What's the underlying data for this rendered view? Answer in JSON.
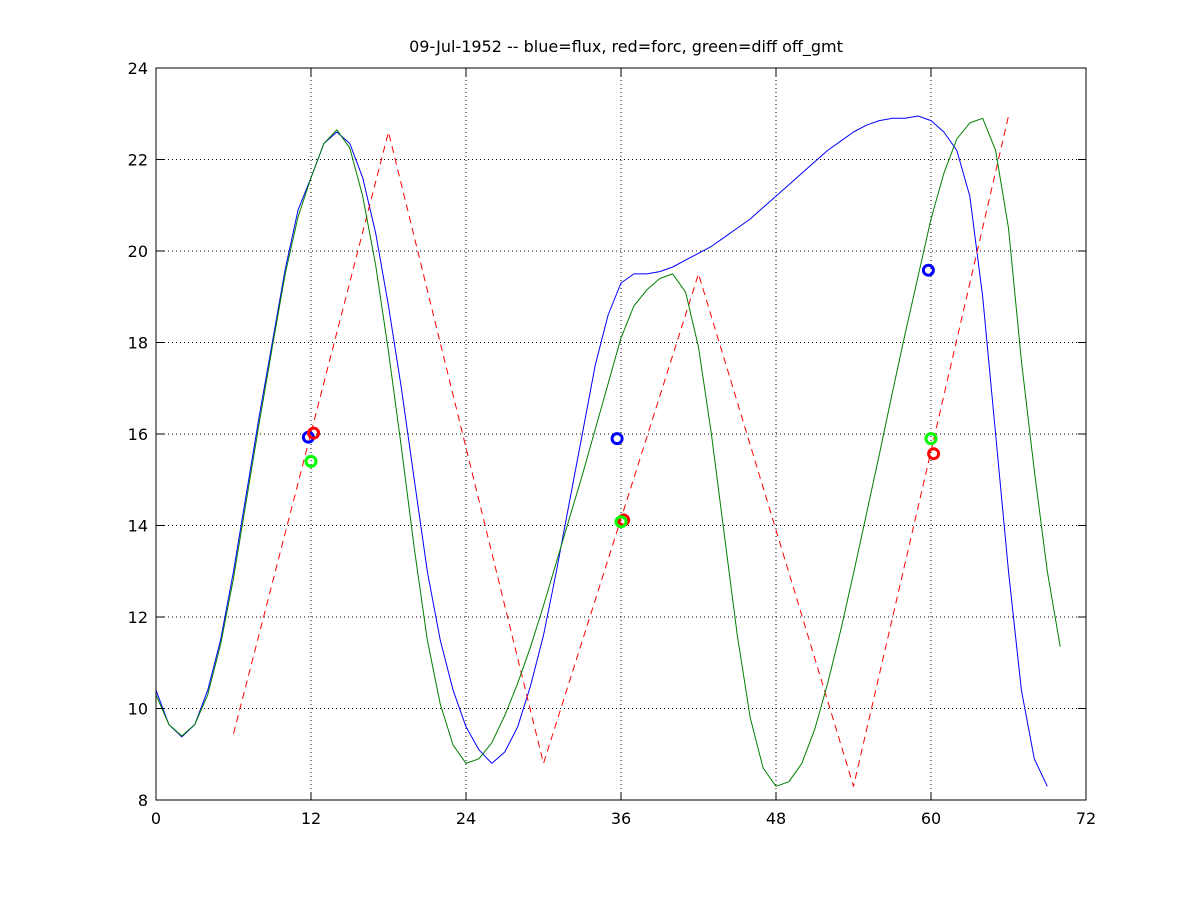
{
  "chart_data": {
    "type": "line",
    "title": "09-Jul-1952 -- blue=flux, red=forc, green=diff off_gmt",
    "xlabel": "",
    "ylabel": "",
    "xlim": [
      0,
      72
    ],
    "ylim": [
      8,
      24
    ],
    "grid": true,
    "xticks": [
      0,
      12,
      24,
      36,
      48,
      60,
      72
    ],
    "xtick_labels": [
      "0",
      "12",
      "24",
      "36",
      "48",
      "60",
      "72"
    ],
    "yticks": [
      8,
      10,
      12,
      14,
      16,
      18,
      20,
      22,
      24
    ],
    "ytick_labels": [
      "8",
      "10",
      "12",
      "14",
      "16",
      "18",
      "20",
      "22",
      "24"
    ],
    "series": [
      {
        "name": "flux",
        "color": "#0000ff",
        "style": "solid",
        "points": [
          [
            0,
            10.4
          ],
          [
            1,
            9.65
          ],
          [
            2,
            9.38
          ],
          [
            3,
            9.65
          ],
          [
            4,
            10.4
          ],
          [
            5,
            11.5
          ],
          [
            6,
            13.0
          ],
          [
            7,
            14.7
          ],
          [
            8,
            16.4
          ],
          [
            9,
            18.0
          ],
          [
            10,
            19.6
          ],
          [
            11,
            20.9
          ],
          [
            12,
            21.6
          ],
          [
            13,
            22.35
          ],
          [
            14,
            22.6
          ],
          [
            15,
            22.35
          ],
          [
            16,
            21.6
          ],
          [
            17,
            20.4
          ],
          [
            18,
            18.8
          ],
          [
            19,
            17.0
          ],
          [
            20,
            15.0
          ],
          [
            21,
            13.0
          ],
          [
            22,
            11.5
          ],
          [
            23,
            10.4
          ],
          [
            24,
            9.6
          ],
          [
            25,
            9.1
          ],
          [
            26,
            8.8
          ],
          [
            27,
            9.05
          ],
          [
            28,
            9.6
          ],
          [
            29,
            10.5
          ],
          [
            30,
            11.6
          ],
          [
            31,
            13.0
          ],
          [
            32,
            14.5
          ],
          [
            33,
            16.0
          ],
          [
            34,
            17.5
          ],
          [
            35,
            18.6
          ],
          [
            36,
            19.3
          ],
          [
            37,
            19.5
          ],
          [
            38,
            19.5
          ],
          [
            39,
            19.55
          ],
          [
            40,
            19.65
          ],
          [
            41,
            19.8
          ],
          [
            42,
            19.95
          ],
          [
            43,
            20.1
          ],
          [
            44,
            20.3
          ],
          [
            45,
            20.5
          ],
          [
            46,
            20.7
          ],
          [
            47,
            20.95
          ],
          [
            48,
            21.2
          ],
          [
            49,
            21.45
          ],
          [
            50,
            21.7
          ],
          [
            51,
            21.95
          ],
          [
            52,
            22.2
          ],
          [
            53,
            22.4
          ],
          [
            54,
            22.6
          ],
          [
            55,
            22.75
          ],
          [
            56,
            22.85
          ],
          [
            57,
            22.9
          ],
          [
            58,
            22.9
          ],
          [
            59,
            22.95
          ],
          [
            60,
            22.85
          ],
          [
            61,
            22.6
          ],
          [
            62,
            22.2
          ],
          [
            63,
            21.2
          ],
          [
            64,
            19.0
          ],
          [
            65,
            16.0
          ],
          [
            66,
            13.0
          ],
          [
            67,
            10.4
          ],
          [
            68,
            8.9
          ],
          [
            69,
            8.3
          ]
        ]
      },
      {
        "name": "forc",
        "color": "#ff0000",
        "style": "dashed",
        "points": [
          [
            6,
            9.45
          ],
          [
            18,
            22.6
          ],
          [
            30,
            8.8
          ],
          [
            42,
            19.5
          ],
          [
            54,
            8.3
          ],
          [
            66,
            22.95
          ]
        ]
      },
      {
        "name": "diff",
        "color": "#008000",
        "style": "solid",
        "points": [
          [
            0,
            10.3
          ],
          [
            1,
            9.65
          ],
          [
            2,
            9.4
          ],
          [
            3,
            9.65
          ],
          [
            4,
            10.3
          ],
          [
            5,
            11.4
          ],
          [
            6,
            12.85
          ],
          [
            7,
            14.55
          ],
          [
            8,
            16.25
          ],
          [
            9,
            17.9
          ],
          [
            10,
            19.5
          ],
          [
            11,
            20.75
          ],
          [
            12,
            21.6
          ],
          [
            13,
            22.35
          ],
          [
            14,
            22.65
          ],
          [
            15,
            22.25
          ],
          [
            16,
            21.2
          ],
          [
            17,
            19.7
          ],
          [
            18,
            17.8
          ],
          [
            19,
            15.7
          ],
          [
            20,
            13.5
          ],
          [
            21,
            11.5
          ],
          [
            22,
            10.1
          ],
          [
            23,
            9.2
          ],
          [
            24,
            8.8
          ],
          [
            25,
            8.9
          ],
          [
            26,
            9.25
          ],
          [
            27,
            9.85
          ],
          [
            28,
            10.55
          ],
          [
            29,
            11.35
          ],
          [
            30,
            12.25
          ],
          [
            31,
            13.2
          ],
          [
            32,
            14.15
          ],
          [
            33,
            15.1
          ],
          [
            34,
            16.1
          ],
          [
            35,
            17.1
          ],
          [
            36,
            18.1
          ],
          [
            37,
            18.8
          ],
          [
            38,
            19.15
          ],
          [
            39,
            19.4
          ],
          [
            40,
            19.5
          ],
          [
            41,
            19.1
          ],
          [
            42,
            17.9
          ],
          [
            43,
            16.0
          ],
          [
            44,
            13.8
          ],
          [
            45,
            11.6
          ],
          [
            46,
            9.8
          ],
          [
            47,
            8.7
          ],
          [
            48,
            8.3
          ],
          [
            49,
            8.4
          ],
          [
            50,
            8.8
          ],
          [
            51,
            9.55
          ],
          [
            52,
            10.55
          ],
          [
            53,
            11.7
          ],
          [
            54,
            12.95
          ],
          [
            55,
            14.25
          ],
          [
            56,
            15.55
          ],
          [
            57,
            16.9
          ],
          [
            58,
            18.2
          ],
          [
            59,
            19.45
          ],
          [
            60,
            20.7
          ],
          [
            61,
            21.7
          ],
          [
            62,
            22.45
          ],
          [
            63,
            22.8
          ],
          [
            64,
            22.9
          ],
          [
            65,
            22.2
          ],
          [
            66,
            20.5
          ],
          [
            67,
            17.6
          ],
          [
            68,
            15.2
          ],
          [
            69,
            13.0
          ],
          [
            70,
            11.35
          ]
        ]
      }
    ],
    "markers": [
      {
        "series": "flux",
        "color": "#0000ff",
        "points": [
          [
            11.8,
            15.93
          ],
          [
            35.7,
            15.9
          ],
          [
            59.8,
            19.58
          ]
        ]
      },
      {
        "series": "forc",
        "color": "#ff0000",
        "points": [
          [
            12.2,
            16.02
          ],
          [
            36.2,
            14.12
          ],
          [
            60.2,
            15.57
          ]
        ]
      },
      {
        "series": "diff",
        "color": "#00ff00",
        "points": [
          [
            12.0,
            15.4
          ],
          [
            36.0,
            14.08
          ],
          [
            60.0,
            15.9
          ]
        ]
      }
    ]
  }
}
